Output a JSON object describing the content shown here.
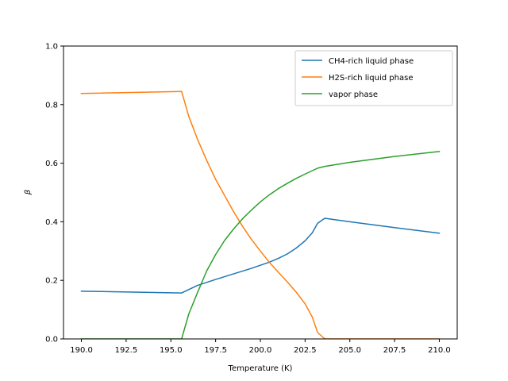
{
  "chart_data": {
    "type": "line",
    "title": "",
    "xlabel": "Temperature (K)",
    "ylabel": "β",
    "xlim": [
      189.0,
      211.0
    ],
    "ylim": [
      0.0,
      1.0
    ],
    "xticks": [
      190.0,
      192.5,
      195.0,
      197.5,
      200.0,
      202.5,
      205.0,
      207.5,
      210.0
    ],
    "xtick_labels": [
      "190.0",
      "192.5",
      "195.0",
      "197.5",
      "200.0",
      "202.5",
      "205.0",
      "207.5",
      "210.0"
    ],
    "yticks": [
      0.0,
      0.2,
      0.4,
      0.6,
      0.8,
      1.0
    ],
    "ytick_labels": [
      "0.0",
      "0.2",
      "0.4",
      "0.6",
      "0.8",
      "1.0"
    ],
    "grid": false,
    "legend_position": "top-right",
    "series": [
      {
        "name": "CH4-rich liquid phase",
        "color": "#1f77b4",
        "x": [
          190.0,
          195.6,
          196.5,
          197.5,
          198.5,
          199.5,
          200.5,
          201.0,
          201.5,
          202.0,
          202.5,
          202.9,
          203.2,
          203.6,
          205.0,
          207.5,
          210.0
        ],
        "y": [
          0.163,
          0.157,
          0.183,
          0.203,
          0.222,
          0.241,
          0.262,
          0.275,
          0.29,
          0.31,
          0.335,
          0.362,
          0.395,
          0.412,
          0.4,
          0.38,
          0.361
        ]
      },
      {
        "name": "H2S-rich liquid phase",
        "color": "#ff7f0e",
        "x": [
          190.0,
          195.6,
          196.0,
          196.5,
          197.0,
          197.5,
          198.0,
          198.5,
          199.0,
          199.5,
          200.0,
          200.5,
          201.0,
          201.5,
          202.0,
          202.5,
          202.9,
          203.2,
          203.6,
          205.0,
          207.5,
          210.0
        ],
        "y": [
          0.838,
          0.845,
          0.76,
          0.68,
          0.61,
          0.545,
          0.49,
          0.435,
          0.385,
          0.34,
          0.3,
          0.262,
          0.228,
          0.195,
          0.16,
          0.12,
          0.075,
          0.022,
          0.0,
          0.0,
          0.0,
          0.0
        ],
        "y_note": ""
      },
      {
        "name": "vapor phase",
        "color": "#2ca02c",
        "x": [
          190.0,
          195.6,
          196.0,
          196.5,
          197.0,
          197.5,
          198.0,
          198.5,
          199.0,
          199.5,
          200.0,
          200.5,
          201.0,
          201.5,
          202.0,
          202.5,
          203.2,
          203.6,
          205.0,
          207.5,
          210.0
        ],
        "y": [
          0.0,
          0.0,
          0.085,
          0.16,
          0.232,
          0.288,
          0.336,
          0.375,
          0.41,
          0.44,
          0.468,
          0.492,
          0.513,
          0.531,
          0.548,
          0.563,
          0.583,
          0.589,
          0.603,
          0.623,
          0.64
        ]
      }
    ]
  }
}
